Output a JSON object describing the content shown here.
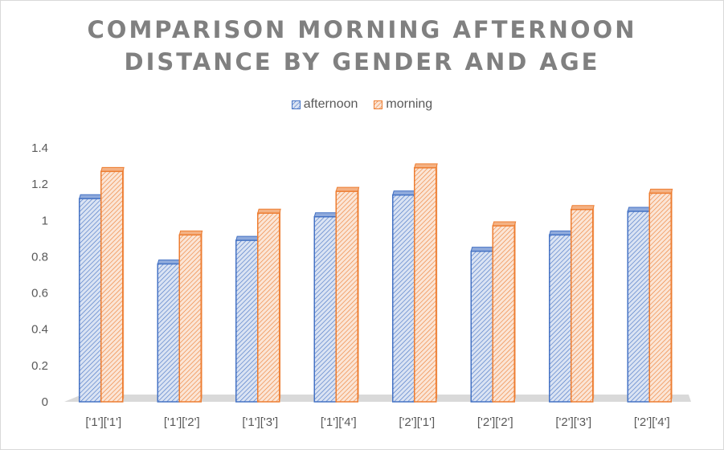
{
  "chart_data": {
    "type": "bar",
    "title_lines": [
      "COMPARISON MORNING AFTERNOON",
      "DISTANCE BY GENDER AND AGE"
    ],
    "categories": [
      "['1']['1']",
      "['1']['2']",
      "['1']['3']",
      "['1']['4']",
      "['2']['1']",
      "['2']['2']",
      "['2']['3']",
      "['2']['4']"
    ],
    "series": [
      {
        "name": "afternoon",
        "values": [
          1.12,
          0.76,
          0.89,
          1.02,
          1.14,
          0.83,
          0.92,
          1.05
        ],
        "color": "#4472c4"
      },
      {
        "name": "morning",
        "values": [
          1.27,
          0.92,
          1.04,
          1.16,
          1.29,
          0.97,
          1.06,
          1.15
        ],
        "color": "#ed7d31"
      }
    ],
    "y_ticks": [
      "0",
      "0.2",
      "0.4",
      "0.6",
      "0.8",
      "1",
      "1.2",
      "1.4"
    ],
    "ylim": [
      0,
      1.4
    ],
    "legend_position": "top",
    "grid": false,
    "style": "3d-clustered-column-hatched"
  }
}
